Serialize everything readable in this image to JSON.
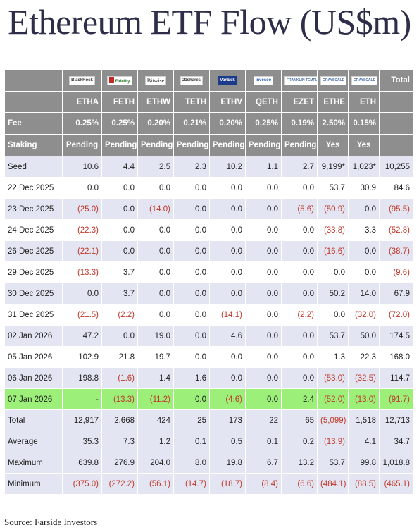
{
  "title": "Ethereum ETF Flow (US$m)",
  "source": "Source: Farside Investors",
  "header": {
    "logos": [
      {
        "text": "BlackRock",
        "icon": "blackrock-logo"
      },
      {
        "text": "Fidelity",
        "icon": "fidelity-logo"
      },
      {
        "text": "Bitwise",
        "icon": "bitwise-logo"
      },
      {
        "text": "21shares",
        "icon": "21shares-logo"
      },
      {
        "text": "VanEck",
        "icon": "vaneck-logo"
      },
      {
        "text": "Invesco",
        "icon": "invesco-logo"
      },
      {
        "text": "FRANKLIN TEMPLETON",
        "icon": "franklin-templeton-logo"
      },
      {
        "text": "GRAYSCALE",
        "icon": "grayscale-logo"
      },
      {
        "text": "GRAYSCALE",
        "icon": "grayscale-logo"
      }
    ],
    "total_label": "Total",
    "tickers": [
      "ETHA",
      "FETH",
      "ETHW",
      "TETH",
      "ETHV",
      "QETH",
      "EZET",
      "ETHE",
      "ETH"
    ],
    "fee_label": "Fee",
    "fees": [
      "0.25%",
      "0.25%",
      "0.20%",
      "0.21%",
      "0.20%",
      "0.25%",
      "0.19%",
      "2.50%",
      "0.15%"
    ],
    "staking_label": "Staking",
    "staking": [
      "Pending",
      "Pending",
      "Pending",
      "Pending",
      "Pending",
      "Pending",
      "Pending",
      "Yes",
      "Yes"
    ]
  },
  "rows": [
    {
      "label": "Seed",
      "cells": [
        "10.6",
        "4.4",
        "2.5",
        "2.3",
        "10.2",
        "1.1",
        "2.7",
        "9,199*",
        "1,023*",
        "10,255"
      ]
    },
    {
      "label": "22 Dec 2025",
      "cells": [
        "0.0",
        "0.0",
        "0.0",
        "0.0",
        "0.0",
        "0.0",
        "0.0",
        "53.7",
        "30.9",
        "84.6"
      ]
    },
    {
      "label": "23 Dec 2025",
      "cells": [
        "(25.0)",
        "0.0",
        "(14.0)",
        "0.0",
        "0.0",
        "0.0",
        "(5.6)",
        "(50.9)",
        "0.0",
        "(95.5)"
      ]
    },
    {
      "label": "24 Dec 2025",
      "cells": [
        "(22.3)",
        "0.0",
        "0.0",
        "0.0",
        "0.0",
        "0.0",
        "0.0",
        "(33.8)",
        "3.3",
        "(52.8)"
      ]
    },
    {
      "label": "26 Dec 2025",
      "cells": [
        "(22.1)",
        "0.0",
        "0.0",
        "0.0",
        "0.0",
        "0.0",
        "0.0",
        "(16.6)",
        "0.0",
        "(38.7)"
      ]
    },
    {
      "label": "29 Dec 2025",
      "cells": [
        "(13.3)",
        "3.7",
        "0.0",
        "0.0",
        "0.0",
        "0.0",
        "0.0",
        "0.0",
        "0.0",
        "(9.6)"
      ]
    },
    {
      "label": "30 Dec 2025",
      "cells": [
        "0.0",
        "3.7",
        "0.0",
        "0.0",
        "0.0",
        "0.0",
        "0.0",
        "50.2",
        "14.0",
        "67.9"
      ]
    },
    {
      "label": "31 Dec 2025",
      "cells": [
        "(21.5)",
        "(2.2)",
        "0.0",
        "0.0",
        "(14.1)",
        "0.0",
        "(2.2)",
        "0.0",
        "(32.0)",
        "(72.0)"
      ]
    },
    {
      "label": "02 Jan 2026",
      "cells": [
        "47.2",
        "0.0",
        "19.0",
        "0.0",
        "4.6",
        "0.0",
        "0.0",
        "53.7",
        "50.0",
        "174.5"
      ]
    },
    {
      "label": "05 Jan 2026",
      "cells": [
        "102.9",
        "21.8",
        "19.7",
        "0.0",
        "0.0",
        "0.0",
        "0.0",
        "1.3",
        "22.3",
        "168.0"
      ]
    },
    {
      "label": "06 Jan 2026",
      "cells": [
        "198.8",
        "(1.6)",
        "1.4",
        "1.6",
        "0.0",
        "0.0",
        "0.0",
        "(53.0)",
        "(32.5)",
        "114.7"
      ]
    },
    {
      "label": "07 Jan 2026",
      "cells": [
        "-",
        "(13.3)",
        "(11.2)",
        "0.0",
        "(4.6)",
        "0.0",
        "2.4",
        "(52.0)",
        "(13.0)",
        "(91.7)"
      ]
    },
    {
      "label": "Total",
      "cells": [
        "12,917",
        "2,668",
        "424",
        "25",
        "173",
        "22",
        "65",
        "(5,099)",
        "1,518",
        "12,713"
      ]
    },
    {
      "label": "Average",
      "cells": [
        "35.3",
        "7.3",
        "1.2",
        "0.1",
        "0.5",
        "0.1",
        "0.2",
        "(13.9)",
        "4.1",
        "34.7"
      ]
    },
    {
      "label": "Maximum",
      "cells": [
        "639.8",
        "276.9",
        "204.0",
        "8.0",
        "19.8",
        "6.7",
        "13.2",
        "53.7",
        "99.8",
        "1,018.8"
      ]
    },
    {
      "label": "Minimum",
      "cells": [
        "(375.0)",
        "(272.2)",
        "(56.1)",
        "(14.7)",
        "(18.7)",
        "(8.4)",
        "(6.6)",
        "(484.1)",
        "(88.5)",
        "(465.1)"
      ]
    }
  ],
  "colors": {
    "header_bg": "#8e8e8e",
    "band_bg": "#e3e6f2",
    "highlight_bg": "#9cf07a",
    "negative": "#c0392b",
    "title": "#2e2e48"
  },
  "chart_data": {
    "type": "table",
    "title": "Ethereum ETF Flow (US$m)",
    "columns": [
      "ETHA",
      "FETH",
      "ETHW",
      "TETH",
      "ETHV",
      "QETH",
      "EZET",
      "ETHE",
      "ETH",
      "Total"
    ],
    "fees": [
      "0.25%",
      "0.25%",
      "0.20%",
      "0.21%",
      "0.20%",
      "0.25%",
      "0.19%",
      "2.50%",
      "0.15%"
    ],
    "staking": [
      "Pending",
      "Pending",
      "Pending",
      "Pending",
      "Pending",
      "Pending",
      "Pending",
      "Yes",
      "Yes"
    ],
    "daily_flows": [
      {
        "date": "22 Dec 2025",
        "values": [
          0.0,
          0.0,
          0.0,
          0.0,
          0.0,
          0.0,
          0.0,
          53.7,
          30.9,
          84.6
        ]
      },
      {
        "date": "23 Dec 2025",
        "values": [
          -25.0,
          0.0,
          -14.0,
          0.0,
          0.0,
          0.0,
          -5.6,
          -50.9,
          0.0,
          -95.5
        ]
      },
      {
        "date": "24 Dec 2025",
        "values": [
          -22.3,
          0.0,
          0.0,
          0.0,
          0.0,
          0.0,
          0.0,
          -33.8,
          3.3,
          -52.8
        ]
      },
      {
        "date": "26 Dec 2025",
        "values": [
          -22.1,
          0.0,
          0.0,
          0.0,
          0.0,
          0.0,
          0.0,
          -16.6,
          0.0,
          -38.7
        ]
      },
      {
        "date": "29 Dec 2025",
        "values": [
          -13.3,
          3.7,
          0.0,
          0.0,
          0.0,
          0.0,
          0.0,
          0.0,
          0.0,
          -9.6
        ]
      },
      {
        "date": "30 Dec 2025",
        "values": [
          0.0,
          3.7,
          0.0,
          0.0,
          0.0,
          0.0,
          0.0,
          50.2,
          14.0,
          67.9
        ]
      },
      {
        "date": "31 Dec 2025",
        "values": [
          -21.5,
          -2.2,
          0.0,
          0.0,
          -14.1,
          0.0,
          -2.2,
          0.0,
          -32.0,
          -72.0
        ]
      },
      {
        "date": "02 Jan 2026",
        "values": [
          47.2,
          0.0,
          19.0,
          0.0,
          4.6,
          0.0,
          0.0,
          53.7,
          50.0,
          174.5
        ]
      },
      {
        "date": "05 Jan 2026",
        "values": [
          102.9,
          21.8,
          19.7,
          0.0,
          0.0,
          0.0,
          0.0,
          1.3,
          22.3,
          168.0
        ]
      },
      {
        "date": "06 Jan 2026",
        "values": [
          198.8,
          -1.6,
          1.4,
          1.6,
          0.0,
          0.0,
          0.0,
          -53.0,
          -32.5,
          114.7
        ]
      },
      {
        "date": "07 Jan 2026",
        "values": [
          null,
          -13.3,
          -11.2,
          0.0,
          -4.6,
          0.0,
          2.4,
          -52.0,
          -13.0,
          -91.7
        ]
      }
    ]
  }
}
